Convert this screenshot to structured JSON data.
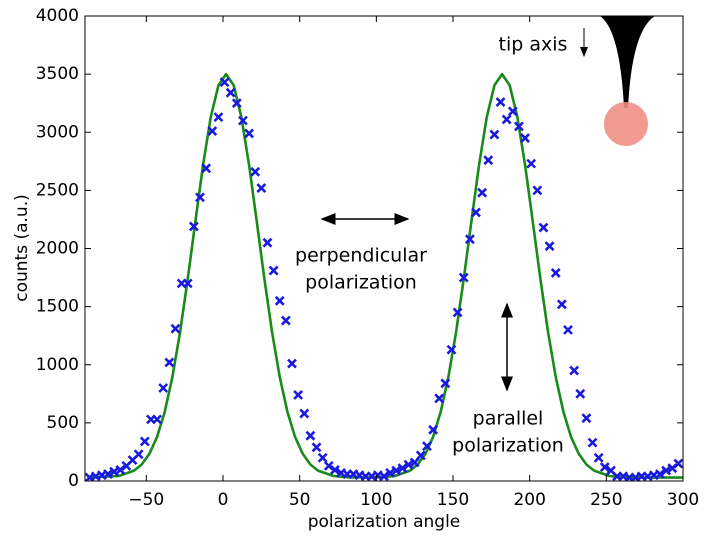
{
  "chart_data": {
    "type": "scatter",
    "xlabel": "polarization angle",
    "ylabel": "counts (a.u.)",
    "xlim": [
      -90,
      300
    ],
    "ylim": [
      0,
      4000
    ],
    "xticks": [
      {
        "value": -50,
        "label": "−50"
      },
      0,
      50,
      100,
      150,
      200,
      250,
      300
    ],
    "yticks": [
      0,
      500,
      1000,
      1500,
      2000,
      2500,
      3000,
      3500,
      4000
    ],
    "annotations": [
      "tip axis",
      "perpendicular",
      "polarization",
      "parallel",
      "polarization"
    ],
    "series": [
      {
        "type": "scatter",
        "color": "#1a1adf",
        "x": [
          -87,
          -83,
          -79,
          -75,
          -71,
          -67,
          -63,
          -59,
          -55,
          -51,
          -47,
          -43,
          -39,
          -35,
          -31,
          -27,
          -23,
          -19,
          -15,
          -11,
          -7,
          -3,
          1,
          5,
          9,
          13,
          17,
          21,
          25,
          29,
          33,
          37,
          41,
          45,
          49,
          53,
          57,
          61,
          65,
          69,
          73,
          77,
          81,
          85,
          89,
          93,
          97,
          101,
          105,
          109,
          113,
          117,
          121,
          125,
          129,
          133,
          137,
          141,
          145,
          149,
          153,
          157,
          161,
          165,
          169,
          173,
          177,
          181,
          185,
          189,
          193,
          197,
          201,
          205,
          209,
          213,
          217,
          221,
          225,
          229,
          233,
          237,
          241,
          245,
          249,
          253,
          257,
          261,
          265,
          269,
          273,
          277,
          281,
          285,
          289,
          293,
          297
        ],
        "values": [
          30,
          40,
          50,
          60,
          80,
          95,
          130,
          180,
          230,
          340,
          530,
          530,
          800,
          1020,
          1310,
          1700,
          1700,
          2190,
          2440,
          2690,
          3010,
          3130,
          3430,
          3340,
          3250,
          3100,
          2990,
          2660,
          2520,
          2050,
          1810,
          1550,
          1380,
          1010,
          740,
          580,
          390,
          290,
          200,
          130,
          95,
          70,
          60,
          60,
          50,
          40,
          40,
          50,
          40,
          70,
          90,
          110,
          140,
          160,
          220,
          300,
          440,
          710,
          840,
          1130,
          1450,
          1750,
          2080,
          2310,
          2480,
          2760,
          2980,
          3260,
          3110,
          3180,
          3050,
          2950,
          2730,
          2500,
          2180,
          2020,
          1790,
          1520,
          1300,
          950,
          750,
          540,
          330,
          200,
          120,
          90,
          40,
          40,
          30,
          30,
          40,
          40,
          50,
          60,
          90,
          110,
          150
        ]
      },
      {
        "type": "line",
        "color": "#1a8a1a",
        "x": [
          -88,
          -68,
          -58,
          -53,
          -48,
          -43,
          -38,
          -33,
          -28,
          -23,
          -18,
          -13,
          -8,
          -3,
          2,
          7,
          12,
          17,
          22,
          27,
          32,
          37,
          42,
          47,
          52,
          57,
          62,
          72,
          82,
          92,
          102,
          112,
          122,
          127,
          132,
          137,
          142,
          147,
          152,
          157,
          162,
          167,
          172,
          177,
          182,
          187,
          192,
          197,
          202,
          207,
          212,
          217,
          222,
          227,
          232,
          237,
          242,
          252,
          262,
          272,
          300
        ],
        "values": [
          30,
          43,
          89,
          142,
          234,
          379,
          596,
          895,
          1280,
          1738,
          2234,
          2719,
          3129,
          3403,
          3500,
          3403,
          3129,
          2719,
          2234,
          1738,
          1280,
          895,
          596,
          379,
          234,
          142,
          89,
          43,
          32,
          30,
          32,
          43,
          89,
          142,
          234,
          379,
          596,
          895,
          1280,
          1738,
          2234,
          2719,
          3129,
          3403,
          3500,
          3403,
          3129,
          2719,
          2234,
          1738,
          1280,
          895,
          596,
          379,
          234,
          142,
          89,
          43,
          32,
          30,
          30
        ]
      }
    ]
  }
}
